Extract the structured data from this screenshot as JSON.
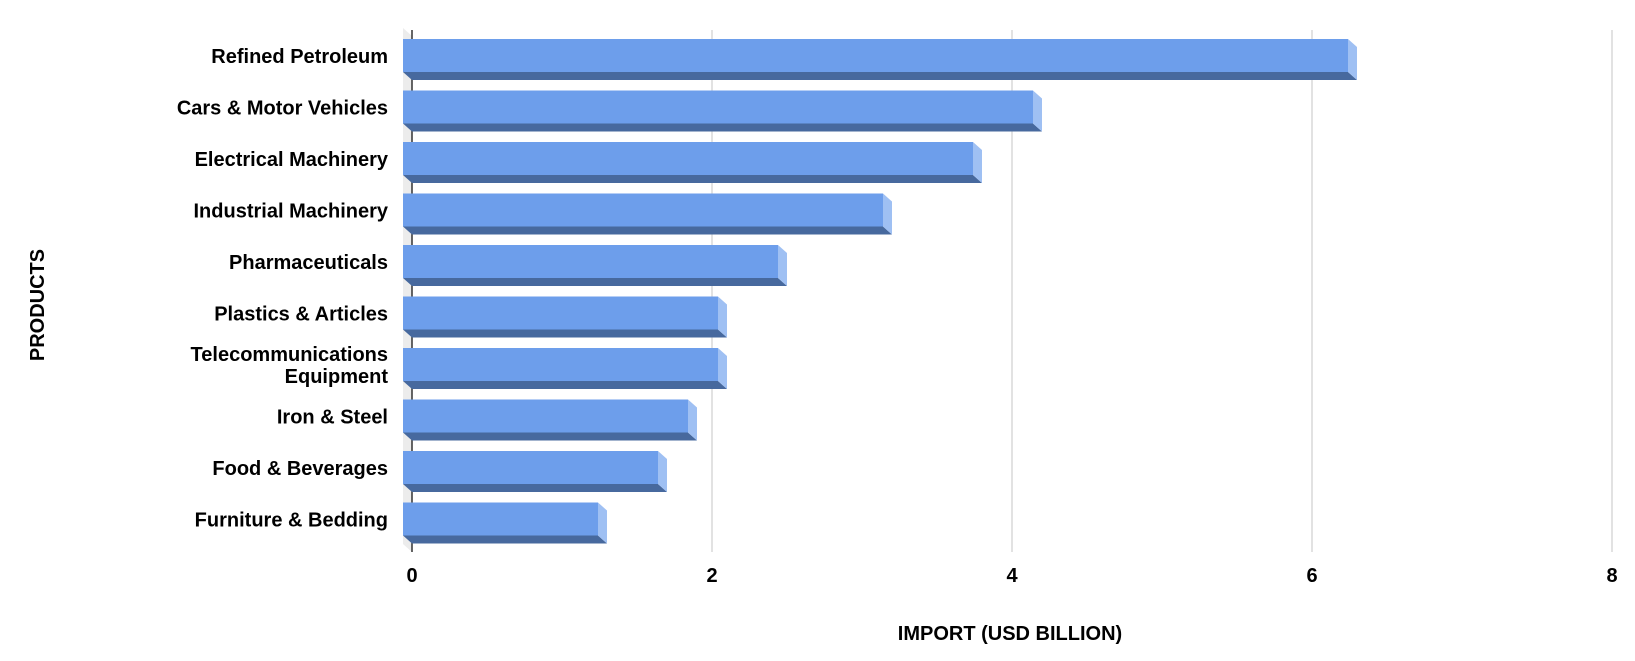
{
  "chart_data": {
    "type": "bar",
    "orientation": "horizontal",
    "style": "3d",
    "categories": [
      "Refined Petroleum",
      "Cars & Motor Vehicles",
      "Electrical Machinery",
      "Industrial Machinery",
      "Pharmaceuticals",
      "Plastics & Articles",
      "Telecommunications Equipment",
      "Iron & Steel",
      "Food & Beverages",
      "Furniture & Bedding"
    ],
    "values": [
      6.3,
      4.2,
      3.8,
      3.2,
      2.5,
      2.1,
      2.1,
      1.9,
      1.7,
      1.3
    ],
    "xlabel": "IMPORT (USD BILLION)",
    "ylabel": "PRODUCTS",
    "xlim": [
      0,
      8
    ],
    "xticks": [
      "0",
      "2",
      "4",
      "6",
      "8"
    ],
    "grid": true,
    "colors": {
      "front": "#6d9eeb",
      "bottom": "#47699e",
      "side": "#9fc0f3",
      "wall": "#ececec",
      "grid": "#d9d9d9"
    }
  }
}
